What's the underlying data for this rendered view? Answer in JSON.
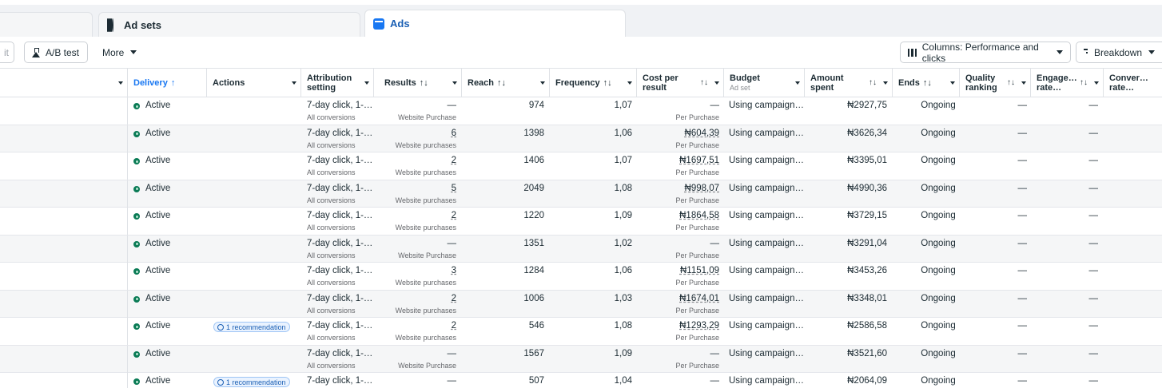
{
  "tabs": [
    {
      "label": ""
    },
    {
      "label": "Ad sets"
    },
    {
      "label": "Ads"
    }
  ],
  "toolbar": {
    "partial_label": "it",
    "ab_label": "A/B test",
    "more_label": "More",
    "columns_label": "Columns: Performance and clicks",
    "breakdown_label": "Breakdown"
  },
  "colors": {
    "active_dot": "#0a7b55",
    "accent": "#1877f2"
  },
  "columns": {
    "delivery": "Delivery",
    "delivery_sort": "↑",
    "actions": "Actions",
    "attribution_1": "Attribution",
    "attribution_2": "setting",
    "results": "Results",
    "reach": "Reach",
    "frequency": "Frequency",
    "cpr_1": "Cost per",
    "cpr_2": "result",
    "budget": "Budget",
    "budget_sub": "Ad set",
    "amount_1": "Amount",
    "amount_2": "spent",
    "ends": "Ends",
    "quality_1": "Quality",
    "quality_2": "ranking",
    "engage_1": "Engage…",
    "engage_2": "rate…",
    "conver_1": "Conver…",
    "conver_2": "rate…",
    "sort_icon": "↑↓"
  },
  "rows": [
    {
      "delivery": "Active",
      "reco": "",
      "attr": "7-day click, 1-…",
      "attr_sub": "All conversions",
      "results": "—",
      "results_sub": "Website Purchase",
      "reach": "974",
      "freq": "1,07",
      "cpr": "—",
      "cpr_sub": "Per Purchase",
      "budget": "Using campaign…",
      "amount": "₦2927,75",
      "ends": "Ongoing",
      "quality": "—",
      "engage": "—"
    },
    {
      "delivery": "Active",
      "reco": "",
      "attr": "7-day click, 1-…",
      "attr_sub": "All conversions",
      "results": "6",
      "results_sub": "Website purchases",
      "reach": "1398",
      "freq": "1,06",
      "cpr": "₦604,39",
      "cpr_sub": "Per Purchase",
      "budget": "Using campaign…",
      "amount": "₦3626,34",
      "ends": "Ongoing",
      "quality": "—",
      "engage": "—"
    },
    {
      "delivery": "Active",
      "reco": "",
      "attr": "7-day click, 1-…",
      "attr_sub": "All conversions",
      "results": "2",
      "results_sub": "Website purchases",
      "reach": "1406",
      "freq": "1,07",
      "cpr": "₦1697,51",
      "cpr_sub": "Per Purchase",
      "budget": "Using campaign…",
      "amount": "₦3395,01",
      "ends": "Ongoing",
      "quality": "—",
      "engage": "—"
    },
    {
      "delivery": "Active",
      "reco": "",
      "attr": "7-day click, 1-…",
      "attr_sub": "All conversions",
      "results": "5",
      "results_sub": "Website purchases",
      "reach": "2049",
      "freq": "1,08",
      "cpr": "₦998,07",
      "cpr_sub": "Per Purchase",
      "budget": "Using campaign…",
      "amount": "₦4990,36",
      "ends": "Ongoing",
      "quality": "—",
      "engage": "—"
    },
    {
      "delivery": "Active",
      "reco": "",
      "attr": "7-day click, 1-…",
      "attr_sub": "All conversions",
      "results": "2",
      "results_sub": "Website purchases",
      "reach": "1220",
      "freq": "1,09",
      "cpr": "₦1864,58",
      "cpr_sub": "Per Purchase",
      "budget": "Using campaign…",
      "amount": "₦3729,15",
      "ends": "Ongoing",
      "quality": "—",
      "engage": "—"
    },
    {
      "delivery": "Active",
      "reco": "",
      "attr": "7-day click, 1-…",
      "attr_sub": "All conversions",
      "results": "—",
      "results_sub": "Website Purchase",
      "reach": "1351",
      "freq": "1,02",
      "cpr": "—",
      "cpr_sub": "Per Purchase",
      "budget": "Using campaign…",
      "amount": "₦3291,04",
      "ends": "Ongoing",
      "quality": "—",
      "engage": "—"
    },
    {
      "delivery": "Active",
      "reco": "",
      "attr": "7-day click, 1-…",
      "attr_sub": "All conversions",
      "results": "3",
      "results_sub": "Website purchases",
      "reach": "1284",
      "freq": "1,06",
      "cpr": "₦1151,09",
      "cpr_sub": "Per Purchase",
      "budget": "Using campaign…",
      "amount": "₦3453,26",
      "ends": "Ongoing",
      "quality": "—",
      "engage": "—"
    },
    {
      "delivery": "Active",
      "reco": "",
      "attr": "7-day click, 1-…",
      "attr_sub": "All conversions",
      "results": "2",
      "results_sub": "Website purchases",
      "reach": "1006",
      "freq": "1,03",
      "cpr": "₦1674,01",
      "cpr_sub": "Per Purchase",
      "budget": "Using campaign…",
      "amount": "₦3348,01",
      "ends": "Ongoing",
      "quality": "—",
      "engage": "—"
    },
    {
      "delivery": "Active",
      "reco": "1 recommendation",
      "attr": "7-day click, 1-…",
      "attr_sub": "All conversions",
      "results": "2",
      "results_sub": "Website purchases",
      "reach": "546",
      "freq": "1,08",
      "cpr": "₦1293,29",
      "cpr_sub": "Per Purchase",
      "budget": "Using campaign…",
      "amount": "₦2586,58",
      "ends": "Ongoing",
      "quality": "—",
      "engage": "—"
    },
    {
      "delivery": "Active",
      "reco": "",
      "attr": "7-day click, 1-…",
      "attr_sub": "All conversions",
      "results": "—",
      "results_sub": "Website Purchase",
      "reach": "1567",
      "freq": "1,09",
      "cpr": "—",
      "cpr_sub": "Per Purchase",
      "budget": "Using campaign…",
      "amount": "₦3521,60",
      "ends": "Ongoing",
      "quality": "—",
      "engage": "—"
    },
    {
      "delivery": "Active",
      "reco": "1 recommendation",
      "attr": "7-day click, 1-…",
      "attr_sub": "",
      "results": "—",
      "results_sub": "",
      "reach": "507",
      "freq": "1,04",
      "cpr": "—",
      "cpr_sub": "",
      "budget": "Using campaign…",
      "amount": "₦2064,09",
      "ends": "Ongoing",
      "quality": "—",
      "engage": "—"
    }
  ]
}
